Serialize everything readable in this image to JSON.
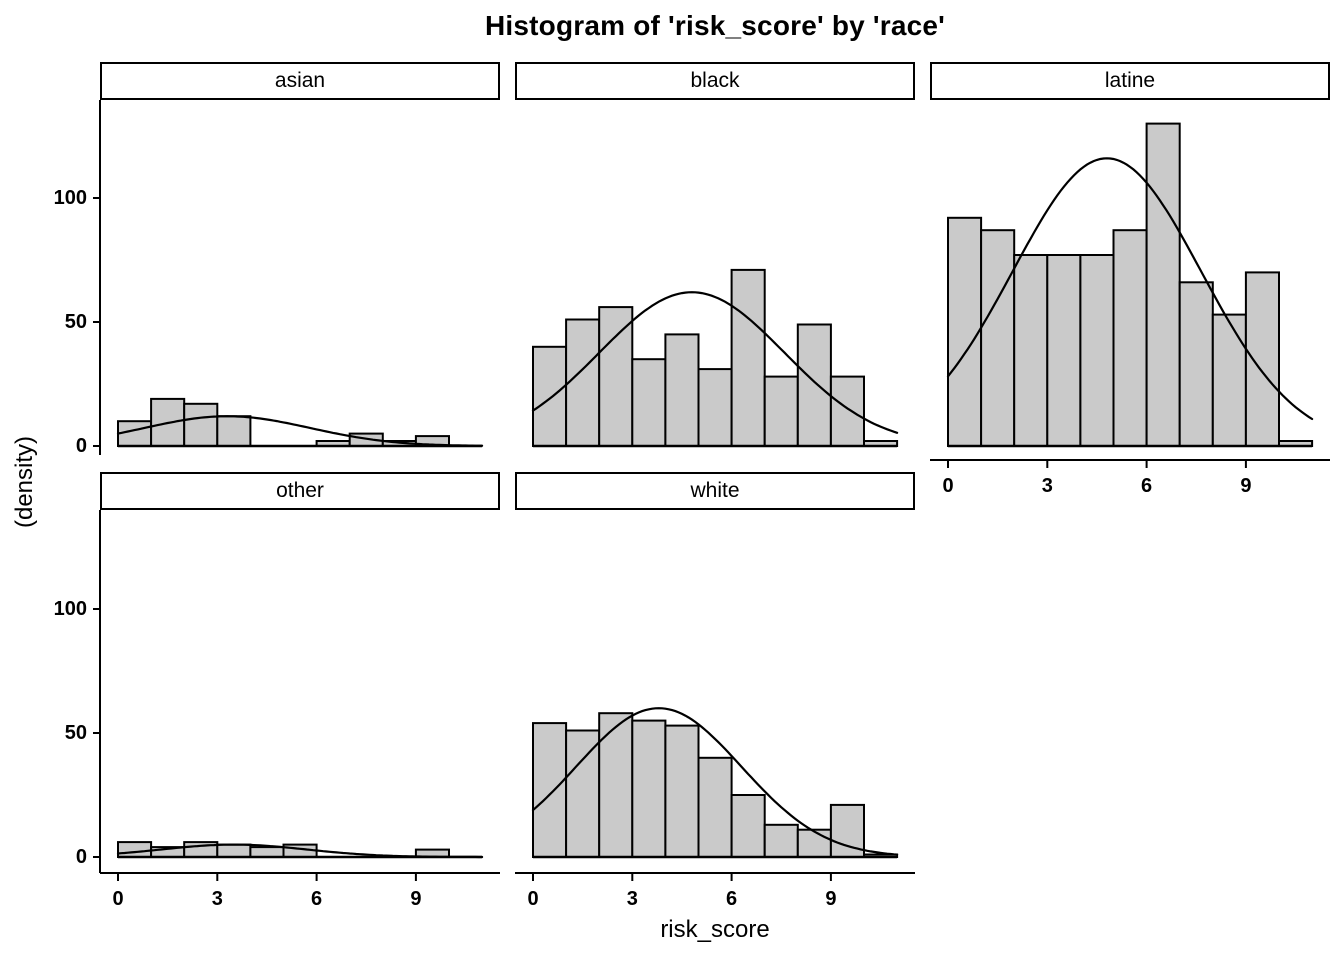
{
  "colors": {
    "background": "#ffffff",
    "bar_fill": "#cacaca",
    "bar_stroke": "#000000",
    "curve": "#000000",
    "axis": "#000000",
    "strip_bg": "#ffffff",
    "strip_border": "#000000",
    "text": "#000000"
  },
  "chart_data": {
    "type": "bar",
    "subtype": "faceted-histogram-with-density-curve",
    "title": "Histogram of 'risk_score' by 'race'",
    "xlabel": "risk_score",
    "ylabel": "(density)",
    "facet_by": "race",
    "legend": "none",
    "grid": "off",
    "x_ticks": [
      0,
      3,
      6,
      9
    ],
    "y_ticks": [
      0,
      50,
      100
    ],
    "bin_start": 0,
    "bin_width": 1,
    "x_range": [
      0,
      11
    ],
    "y_range_display": [
      0,
      140
    ],
    "facets": [
      {
        "label": "asian",
        "row": 0,
        "col": 0,
        "show_x_axis": false,
        "values": [
          10,
          19,
          17,
          12,
          0,
          0,
          2,
          5,
          2,
          4,
          0
        ],
        "curve": {
          "peak": 12,
          "mean": 3.3,
          "sd": 2.5
        }
      },
      {
        "label": "black",
        "row": 0,
        "col": 1,
        "show_x_axis": false,
        "values": [
          40,
          51,
          56,
          35,
          45,
          31,
          71,
          28,
          49,
          28,
          2
        ],
        "curve": {
          "peak": 62,
          "mean": 4.8,
          "sd": 2.8
        }
      },
      {
        "label": "latine",
        "row": 0,
        "col": 2,
        "show_x_axis": true,
        "values": [
          92,
          87,
          77,
          77,
          77,
          87,
          130,
          66,
          53,
          70,
          2
        ],
        "curve": {
          "peak": 116,
          "mean": 4.8,
          "sd": 2.85
        }
      },
      {
        "label": "other",
        "row": 1,
        "col": 0,
        "show_x_axis": true,
        "values": [
          6,
          4,
          6,
          5,
          4,
          5,
          0,
          0,
          0,
          3,
          0
        ],
        "curve": {
          "peak": 5,
          "mean": 3.5,
          "sd": 2.2
        }
      },
      {
        "label": "white",
        "row": 1,
        "col": 1,
        "show_x_axis": true,
        "values": [
          54,
          51,
          58,
          55,
          53,
          40,
          25,
          13,
          11,
          21,
          1
        ],
        "curve": {
          "peak": 60,
          "mean": 3.8,
          "sd": 2.5
        }
      }
    ]
  }
}
